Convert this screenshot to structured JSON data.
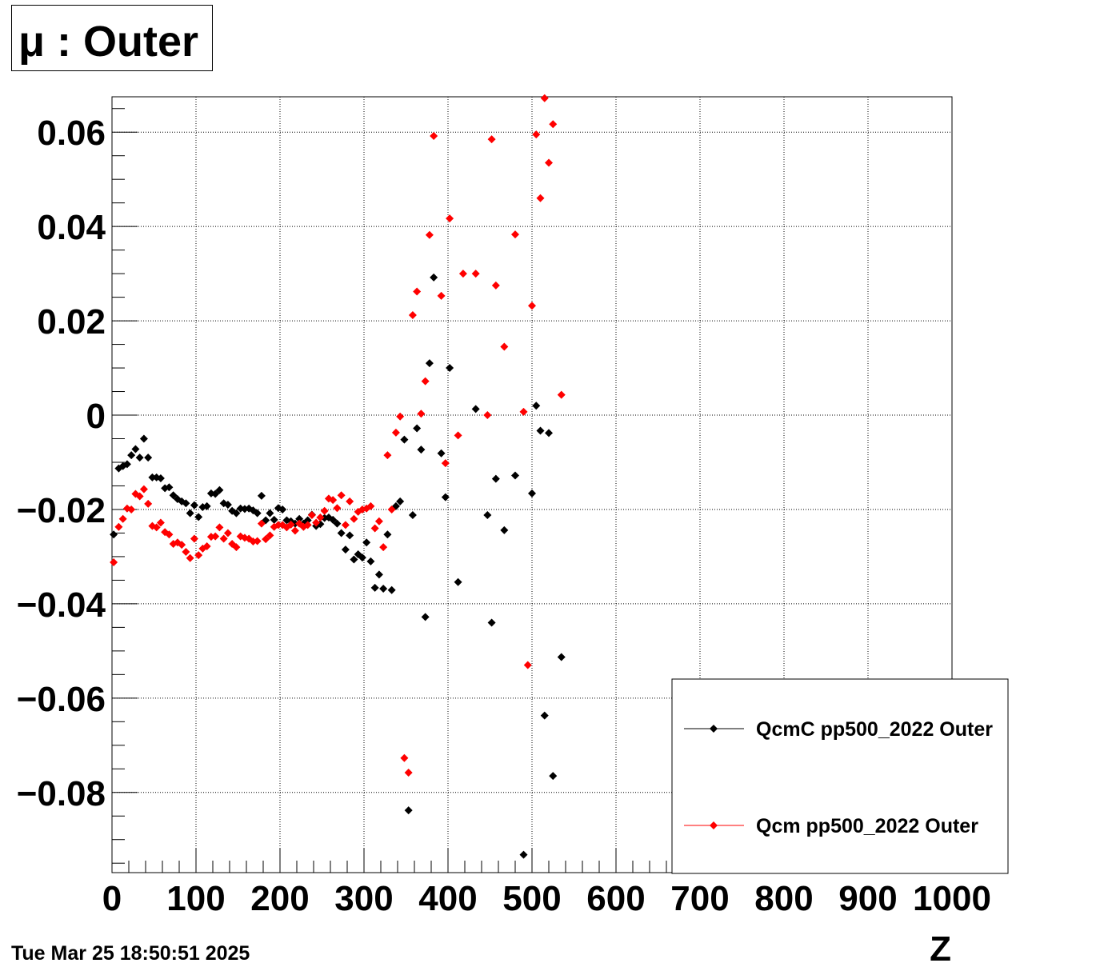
{
  "title": "μ : Outer",
  "timestamp": "Tue Mar 25 18:50:51 2025",
  "chart_data": {
    "type": "scatter",
    "title": "μ : Outer",
    "xlabel": "Z",
    "ylabel": "",
    "xlim": [
      0,
      1000
    ],
    "ylim": [
      -0.097,
      0.0675
    ],
    "grid": true,
    "legend_position": "bottom-right",
    "x_ticks": [
      0,
      100,
      200,
      300,
      400,
      500,
      600,
      700,
      800,
      900,
      1000
    ],
    "x_tick_labels": [
      "0",
      "100",
      "200",
      "300",
      "400",
      "500",
      "600",
      "700",
      "800",
      "900",
      "1000"
    ],
    "y_ticks": [
      -0.08,
      -0.06,
      -0.04,
      -0.02,
      0,
      0.02,
      0.04,
      0.06
    ],
    "y_tick_labels": [
      "−0.08",
      "−0.06",
      "−0.04",
      "−0.02",
      "0",
      "0.02",
      "0.04",
      "0.06"
    ],
    "series": [
      {
        "name": "QcmC pp500_2022 Outer",
        "color": "#000000",
        "points": [
          [
            2,
            -0.0253
          ],
          [
            8,
            -0.0113
          ],
          [
            13,
            -0.0108
          ],
          [
            18,
            -0.0104
          ],
          [
            23,
            -0.0085
          ],
          [
            28,
            -0.0072
          ],
          [
            33,
            -0.009
          ],
          [
            38,
            -0.005
          ],
          [
            43,
            -0.009
          ],
          [
            48,
            -0.0132
          ],
          [
            53,
            -0.0132
          ],
          [
            58,
            -0.0134
          ],
          [
            63,
            -0.0155
          ],
          [
            68,
            -0.0153
          ],
          [
            73,
            -0.017
          ],
          [
            78,
            -0.0178
          ],
          [
            83,
            -0.0183
          ],
          [
            88,
            -0.0187
          ],
          [
            93,
            -0.0208
          ],
          [
            98,
            -0.0191
          ],
          [
            103,
            -0.0216
          ],
          [
            108,
            -0.0195
          ],
          [
            113,
            -0.0193
          ],
          [
            118,
            -0.0166
          ],
          [
            123,
            -0.0167
          ],
          [
            128,
            -0.0159
          ],
          [
            133,
            -0.0187
          ],
          [
            138,
            -0.019
          ],
          [
            143,
            -0.0203
          ],
          [
            148,
            -0.0208
          ],
          [
            153,
            -0.0198
          ],
          [
            158,
            -0.0199
          ],
          [
            163,
            -0.0198
          ],
          [
            168,
            -0.0202
          ],
          [
            173,
            -0.0208
          ],
          [
            178,
            -0.0171
          ],
          [
            183,
            -0.0223
          ],
          [
            188,
            -0.0208
          ],
          [
            193,
            -0.0222
          ],
          [
            198,
            -0.0197
          ],
          [
            203,
            -0.02
          ],
          [
            208,
            -0.0223
          ],
          [
            213,
            -0.0225
          ],
          [
            218,
            -0.023
          ],
          [
            223,
            -0.022
          ],
          [
            228,
            -0.023
          ],
          [
            233,
            -0.0223
          ],
          [
            238,
            -0.0211
          ],
          [
            243,
            -0.0235
          ],
          [
            248,
            -0.0231
          ],
          [
            253,
            -0.0218
          ],
          [
            258,
            -0.0217
          ],
          [
            263,
            -0.0222
          ],
          [
            268,
            -0.023
          ],
          [
            273,
            -0.025
          ],
          [
            278,
            -0.0285
          ],
          [
            283,
            -0.0255
          ],
          [
            288,
            -0.0306
          ],
          [
            293,
            -0.0295
          ],
          [
            298,
            -0.0302
          ],
          [
            303,
            -0.027
          ],
          [
            308,
            -0.031
          ],
          [
            313,
            -0.0366
          ],
          [
            318,
            -0.0338
          ],
          [
            323,
            -0.0368
          ],
          [
            328,
            -0.0253
          ],
          [
            333,
            -0.0371
          ],
          [
            338,
            -0.0193
          ],
          [
            343,
            -0.0183
          ],
          [
            348,
            -0.0052
          ],
          [
            353,
            -0.0838
          ],
          [
            358,
            -0.0212
          ],
          [
            363,
            -0.0028
          ],
          [
            368,
            -0.0073
          ],
          [
            373,
            -0.0428
          ],
          [
            378,
            0.011
          ],
          [
            383,
            0.0292
          ],
          [
            392,
            -0.0081
          ],
          [
            397,
            -0.0174
          ],
          [
            402,
            0.01
          ],
          [
            412,
            -0.0354
          ],
          [
            433,
            0.0013
          ],
          [
            447,
            -0.0212
          ],
          [
            452,
            -0.044
          ],
          [
            457,
            -0.0135
          ],
          [
            467,
            -0.0244
          ],
          [
            480,
            -0.0128
          ],
          [
            490,
            -0.0932
          ],
          [
            500,
            -0.0166
          ],
          [
            505,
            0.002
          ],
          [
            510,
            -0.0033
          ],
          [
            515,
            -0.0637
          ],
          [
            520,
            -0.0038
          ],
          [
            525,
            -0.0765
          ],
          [
            535,
            -0.0513
          ]
        ]
      },
      {
        "name": "Qcm pp500_2022 Outer",
        "color": "#ff0000",
        "points": [
          [
            2,
            -0.0312
          ],
          [
            8,
            -0.0237
          ],
          [
            13,
            -0.022
          ],
          [
            18,
            -0.0198
          ],
          [
            23,
            -0.02
          ],
          [
            28,
            -0.0167
          ],
          [
            33,
            -0.0172
          ],
          [
            38,
            -0.0157
          ],
          [
            43,
            -0.0188
          ],
          [
            48,
            -0.0235
          ],
          [
            53,
            -0.0238
          ],
          [
            58,
            -0.0228
          ],
          [
            63,
            -0.0248
          ],
          [
            68,
            -0.0253
          ],
          [
            73,
            -0.0273
          ],
          [
            78,
            -0.027
          ],
          [
            83,
            -0.0275
          ],
          [
            88,
            -0.029
          ],
          [
            93,
            -0.0303
          ],
          [
            98,
            -0.0262
          ],
          [
            103,
            -0.0297
          ],
          [
            108,
            -0.0283
          ],
          [
            113,
            -0.0278
          ],
          [
            118,
            -0.0258
          ],
          [
            123,
            -0.0257
          ],
          [
            128,
            -0.0238
          ],
          [
            133,
            -0.0262
          ],
          [
            138,
            -0.025
          ],
          [
            143,
            -0.0273
          ],
          [
            148,
            -0.028
          ],
          [
            153,
            -0.0257
          ],
          [
            158,
            -0.026
          ],
          [
            163,
            -0.0262
          ],
          [
            168,
            -0.0268
          ],
          [
            173,
            -0.0267
          ],
          [
            178,
            -0.023
          ],
          [
            183,
            -0.0263
          ],
          [
            188,
            -0.0255
          ],
          [
            193,
            -0.0237
          ],
          [
            198,
            -0.0233
          ],
          [
            203,
            -0.0233
          ],
          [
            208,
            -0.0238
          ],
          [
            213,
            -0.0232
          ],
          [
            218,
            -0.0245
          ],
          [
            223,
            -0.023
          ],
          [
            228,
            -0.0237
          ],
          [
            233,
            -0.0233
          ],
          [
            238,
            -0.0212
          ],
          [
            243,
            -0.0228
          ],
          [
            248,
            -0.0217
          ],
          [
            253,
            -0.0203
          ],
          [
            258,
            -0.0177
          ],
          [
            263,
            -0.018
          ],
          [
            268,
            -0.0197
          ],
          [
            273,
            -0.017
          ],
          [
            278,
            -0.0233
          ],
          [
            283,
            -0.0183
          ],
          [
            288,
            -0.022
          ],
          [
            293,
            -0.0205
          ],
          [
            298,
            -0.02
          ],
          [
            303,
            -0.0198
          ],
          [
            308,
            -0.0193
          ],
          [
            313,
            -0.024
          ],
          [
            318,
            -0.0225
          ],
          [
            323,
            -0.028
          ],
          [
            328,
            -0.0085
          ],
          [
            333,
            -0.02
          ],
          [
            338,
            -0.0037
          ],
          [
            343,
            -0.0003
          ],
          [
            348,
            -0.0727
          ],
          [
            353,
            -0.0758
          ],
          [
            358,
            0.0212
          ],
          [
            363,
            0.0262
          ],
          [
            368,
            0.0003
          ],
          [
            373,
            0.0072
          ],
          [
            378,
            0.0382
          ],
          [
            383,
            0.0592
          ],
          [
            392,
            0.0253
          ],
          [
            397,
            -0.0102
          ],
          [
            402,
            0.0417
          ],
          [
            412,
            -0.0043
          ],
          [
            418,
            0.03
          ],
          [
            433,
            0.03
          ],
          [
            447,
            0.0
          ],
          [
            452,
            0.0585
          ],
          [
            457,
            0.0275
          ],
          [
            467,
            0.0145
          ],
          [
            480,
            0.0383
          ],
          [
            490,
            0.0007
          ],
          [
            495,
            -0.053
          ],
          [
            500,
            0.0232
          ],
          [
            505,
            0.0595
          ],
          [
            510,
            0.046
          ],
          [
            515,
            0.0672
          ],
          [
            520,
            0.0535
          ],
          [
            525,
            0.0617
          ],
          [
            535,
            0.0043
          ]
        ]
      }
    ]
  }
}
